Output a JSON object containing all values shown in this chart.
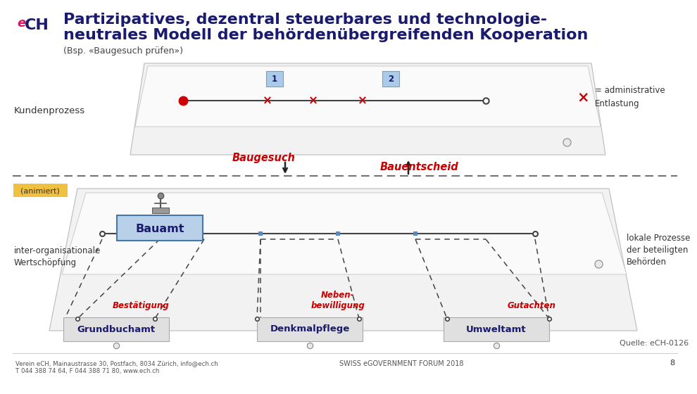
{
  "title_line1": "Partizipatives, dezentral steuerbares und technologie-",
  "title_line2": "neutrales Modell der behördenübergreifenden Kooperation",
  "subtitle": "(Bsp. «Baugesuch prüfen»)",
  "title_color": "#1a1a6e",
  "title_fontsize": 16,
  "subtitle_fontsize": 9,
  "bg_color": "#ffffff",
  "label_kundenprozess": "Kundenprozess",
  "label_baugesuch": "Baugesuch",
  "label_bauentscheid": "Bauentscheid",
  "label_animiert": "(animiert)",
  "label_inter": "inter-organisationale\nWertschöpfung",
  "label_lokale": "lokale Prozesse\nder beteiligten\nBehörden",
  "label_bauamt": "Bauamt",
  "label_bestatigung": "Bestätigung",
  "label_nebenbewilligung": "Neben-\nbewilligung",
  "label_gutachten": "Gutachten",
  "label_grundbuchamt": "Grundbuchamt",
  "label_denkmalpflege": "Denkmalpflege",
  "label_umweltamt": "Umweltamt",
  "label_quelle": "Quelle: eCH-0126",
  "label_admin": "= administrative\nEntlastung",
  "label_address1": "Verein eCH, Mainaustrasse 30, Postfach, 8034 Zürich, info@ech.ch",
  "label_address2": "T 044 388 74 64, F 044 388 71 80, www.ech.ch",
  "label_forum": "SWISS eGOVERNMENT FORUM 2018",
  "label_page": "8",
  "red_color": "#cc0000",
  "dark_red": "#cc0000",
  "title_blue": "#1a1a6e",
  "animiert_bg": "#f0c040",
  "box_blue_light": "#b8d0e8",
  "trap_fill": "#f2f2f2",
  "trap_edge": "#bbbbbb",
  "inner_fill": "#fafafa",
  "dash_color": "#444444",
  "line_color": "#444444",
  "gray_fill": "#e0e0e0",
  "circle_fill": "#e8e8e8"
}
